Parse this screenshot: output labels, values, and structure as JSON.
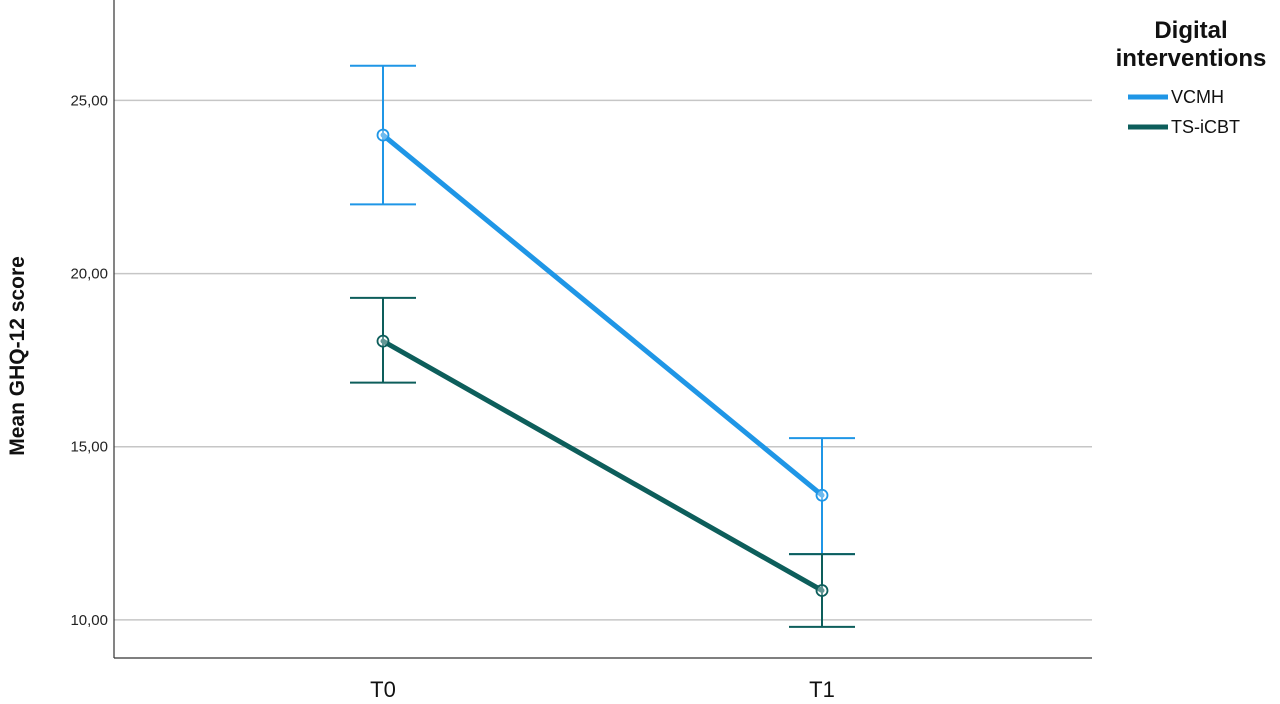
{
  "chart_data": {
    "type": "line",
    "categories": [
      "T0",
      "T1"
    ],
    "ylabel": "Mean GHQ-12 score",
    "xlabel": "",
    "ylim": [
      8.9,
      27.9
    ],
    "yticks": [
      10,
      15,
      20,
      25
    ],
    "ytick_labels": [
      "10,00",
      "15,00",
      "20,00",
      "25,00"
    ],
    "grid": "horizontal",
    "legend": {
      "title_lines": [
        "Digital",
        "interventions"
      ],
      "placement": "top-right"
    },
    "series": [
      {
        "name": "VCMH",
        "color": "#1f96e6",
        "values": [
          24.0,
          13.6
        ],
        "error_low": [
          22.0,
          11.9
        ],
        "error_high": [
          26.0,
          15.25
        ]
      },
      {
        "name": "TS-iCBT",
        "color": "#0d5e5b",
        "values": [
          18.05,
          10.85
        ],
        "error_low": [
          16.85,
          9.8
        ],
        "error_high": [
          19.3,
          11.9
        ]
      }
    ]
  }
}
